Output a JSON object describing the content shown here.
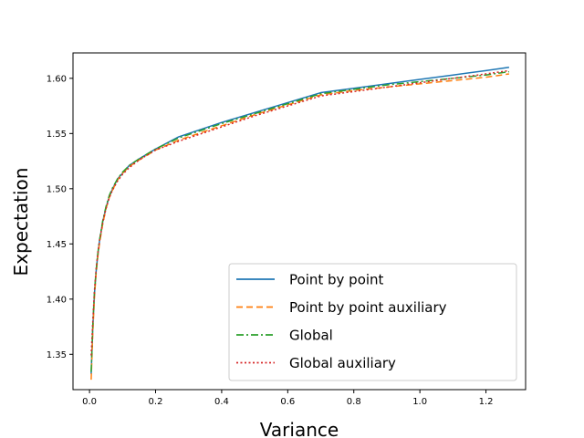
{
  "chart_data": {
    "type": "line",
    "title": "",
    "xlabel": "Variance",
    "ylabel": "Expectation",
    "xlim": [
      -0.05,
      1.32
    ],
    "ylim": [
      1.318,
      1.623
    ],
    "xticks": [
      0.0,
      0.2,
      0.4,
      0.6,
      0.8,
      1.0,
      1.2
    ],
    "yticks": [
      1.35,
      1.4,
      1.45,
      1.5,
      1.55,
      1.6
    ],
    "xtick_labels": [
      "0.0",
      "0.2",
      "0.4",
      "0.6",
      "0.8",
      "1.0",
      "1.2"
    ],
    "ytick_labels": [
      "1.35",
      "1.40",
      "1.45",
      "1.50",
      "1.55",
      "1.60"
    ],
    "grid": false,
    "legend_position": "bottom-right",
    "series": [
      {
        "name": "Point by point",
        "color": "#1f77b4",
        "linestyle": "solid",
        "x": [
          0.005,
          0.01,
          0.015,
          0.02,
          0.025,
          0.03,
          0.04,
          0.05,
          0.06,
          0.07,
          0.085,
          0.1,
          0.12,
          0.15,
          0.2,
          0.27,
          0.3,
          0.4,
          0.5,
          0.6,
          0.7,
          0.8,
          0.9,
          1.0,
          1.1,
          1.2,
          1.27
        ],
        "y": [
          1.332,
          1.375,
          1.405,
          1.425,
          1.44,
          1.452,
          1.47,
          1.483,
          1.493,
          1.5,
          1.509,
          1.514,
          1.521,
          1.527,
          1.536,
          1.547,
          1.55,
          1.56,
          1.569,
          1.578,
          1.587,
          1.591,
          1.595,
          1.599,
          1.603,
          1.607,
          1.61
        ]
      },
      {
        "name": "Point by point auxiliary",
        "color": "#ff7f0e",
        "linestyle": "dashed",
        "x": [
          0.005,
          0.01,
          0.015,
          0.02,
          0.025,
          0.03,
          0.04,
          0.05,
          0.06,
          0.07,
          0.085,
          0.1,
          0.12,
          0.15,
          0.2,
          0.27,
          0.3,
          0.4,
          0.5,
          0.6,
          0.7,
          0.8,
          0.9,
          1.0,
          1.1,
          1.2,
          1.27
        ],
        "y": [
          1.327,
          1.37,
          1.402,
          1.423,
          1.438,
          1.45,
          1.468,
          1.482,
          1.492,
          1.499,
          1.508,
          1.514,
          1.52,
          1.526,
          1.535,
          1.544,
          1.547,
          1.557,
          1.567,
          1.576,
          1.585,
          1.589,
          1.592,
          1.595,
          1.598,
          1.601,
          1.604
        ]
      },
      {
        "name": "Global",
        "color": "#2ca02c",
        "linestyle": "dashdot",
        "x": [
          0.005,
          0.01,
          0.015,
          0.02,
          0.025,
          0.03,
          0.04,
          0.05,
          0.06,
          0.07,
          0.085,
          0.1,
          0.12,
          0.15,
          0.2,
          0.27,
          0.3,
          0.4,
          0.5,
          0.6,
          0.7,
          0.8,
          0.9,
          1.0,
          1.1,
          1.2,
          1.27
        ],
        "y": [
          1.334,
          1.377,
          1.407,
          1.426,
          1.441,
          1.453,
          1.471,
          1.484,
          1.494,
          1.501,
          1.509,
          1.515,
          1.521,
          1.527,
          1.536,
          1.546,
          1.549,
          1.559,
          1.568,
          1.577,
          1.586,
          1.59,
          1.594,
          1.597,
          1.6,
          1.603,
          1.606
        ]
      },
      {
        "name": "Global auxiliary",
        "color": "#d62728",
        "linestyle": "dotted",
        "x": [
          0.005,
          0.01,
          0.015,
          0.02,
          0.025,
          0.03,
          0.04,
          0.05,
          0.06,
          0.07,
          0.085,
          0.1,
          0.12,
          0.15,
          0.2,
          0.27,
          0.3,
          0.4,
          0.5,
          0.6,
          0.7,
          0.8,
          0.9,
          1.0,
          1.1,
          1.2,
          1.27
        ],
        "y": [
          1.349,
          1.38,
          1.408,
          1.427,
          1.441,
          1.452,
          1.469,
          1.482,
          1.492,
          1.499,
          1.507,
          1.513,
          1.519,
          1.526,
          1.535,
          1.543,
          1.546,
          1.556,
          1.566,
          1.575,
          1.584,
          1.588,
          1.592,
          1.596,
          1.6,
          1.604,
          1.607
        ]
      }
    ]
  }
}
